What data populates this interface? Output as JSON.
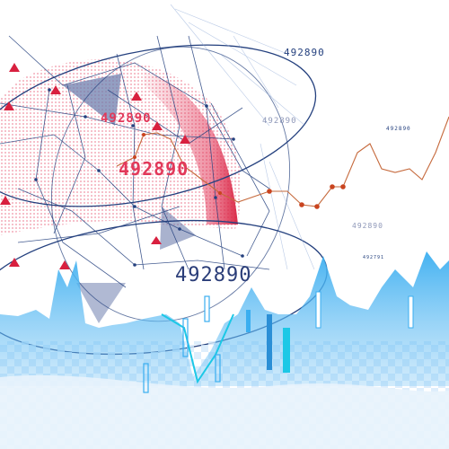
{
  "numbers": {
    "top": "492890",
    "red_small": "492890",
    "red_large": "492890",
    "faded_upper": "492890",
    "tiny_upper": "492890",
    "faded_mid": "492890",
    "tiny_mid": "492791",
    "large": "492890"
  },
  "colors": {
    "navy": "#24407e",
    "red": "#e2395a",
    "orange_line": "#c66a3d",
    "sky_blue": "#3aaef0",
    "cyan": "#1cc8e6",
    "pale_blue": "#cfe6fb"
  }
}
